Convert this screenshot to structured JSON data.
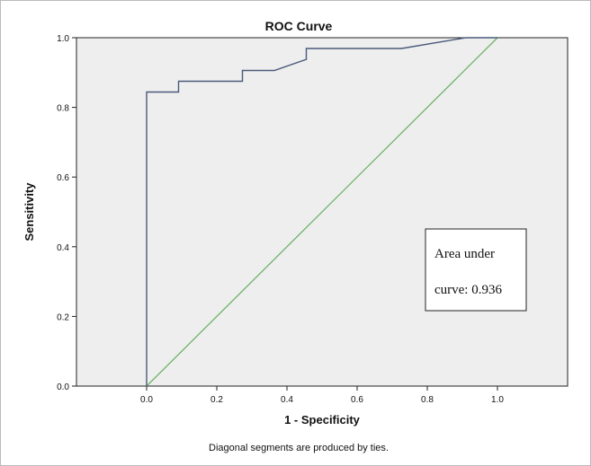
{
  "chart_data": {
    "type": "line",
    "title": "ROC Curve",
    "xlabel": "1 - Specificity",
    "ylabel": "Sensitivity",
    "footnote": "Diagonal segments are produced by ties.",
    "xlim": [
      -0.2,
      1.2
    ],
    "ylim": [
      0,
      1
    ],
    "x_ticks": [
      0.0,
      0.2,
      0.4,
      0.6,
      0.8,
      1.0
    ],
    "x_tick_labels": [
      "0.0",
      "0.2",
      "0.4",
      "0.6",
      "0.8",
      "1.0"
    ],
    "y_ticks": [
      0.0,
      0.2,
      0.4,
      0.6,
      0.8,
      1.0
    ],
    "y_tick_labels": [
      "0.0",
      "0.2",
      "0.4",
      "0.6",
      "0.8",
      "1.0"
    ],
    "grid": false,
    "annotation": {
      "line1": "Area under",
      "line2": "curve: 0.936"
    },
    "series": [
      {
        "role": "roc",
        "color": "#4a5a7a",
        "points": [
          [
            0,
            0
          ],
          [
            0,
            0.844
          ],
          [
            0.091,
            0.844
          ],
          [
            0.091,
            0.875
          ],
          [
            0.273,
            0.875
          ],
          [
            0.273,
            0.906
          ],
          [
            0.364,
            0.906
          ],
          [
            0.455,
            0.938
          ],
          [
            0.455,
            0.969
          ],
          [
            0.727,
            0.969
          ],
          [
            0.909,
            1.0
          ],
          [
            1.0,
            1.0
          ]
        ]
      },
      {
        "role": "reference",
        "color": "#6fb36a",
        "points": [
          [
            0,
            0
          ],
          [
            1,
            1
          ]
        ]
      }
    ]
  },
  "colors": {
    "plot_background": "#eeeeee",
    "frame": "#222222",
    "outer_border": "#bbbbbb"
  }
}
